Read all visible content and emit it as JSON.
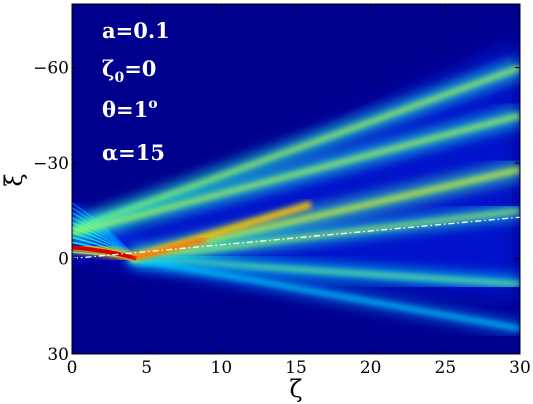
{
  "chart_data": {
    "type": "heatmap",
    "colormap": "jet",
    "xlabel": "ζ",
    "ylabel": "ξ",
    "xlim": [
      0,
      30
    ],
    "ylim": [
      30,
      -80
    ],
    "x_ticks": [
      "0",
      "5",
      "10",
      "15",
      "20",
      "25",
      "30"
    ],
    "y_ticks": [
      {
        "value": -60,
        "label": "−60"
      },
      {
        "value": -30,
        "label": "−30"
      },
      {
        "value": 0,
        "label": "0"
      },
      {
        "value": 30,
        "label": "30"
      }
    ],
    "annotations": [
      {
        "base": "a=0.1",
        "sub": "",
        "sup": ""
      },
      {
        "base": "ζ",
        "sub": "0",
        "rest": "=0",
        "sup": ""
      },
      {
        "base": "θ=1",
        "sub": "",
        "sup": "o"
      },
      {
        "base": "α=15",
        "sub": "",
        "sup": ""
      }
    ],
    "reference_line": {
      "style": "dash-dot",
      "color": "#ffffff",
      "x": [
        0,
        30
      ],
      "y": [
        0,
        -13
      ]
    },
    "beams": [
      {
        "x0": 0,
        "y0": -9,
        "x1": 30,
        "y1": -60,
        "level": 0.55,
        "width": 5
      },
      {
        "x0": 0,
        "y0": -8,
        "x1": 30,
        "y1": -45,
        "level": 0.55,
        "width": 5
      },
      {
        "x0": 4,
        "y0": 0,
        "x1": 30,
        "y1": -28,
        "level": 0.6,
        "width": 5
      },
      {
        "x0": 4,
        "y0": 0,
        "x1": 30,
        "y1": -15,
        "level": 0.55,
        "width": 4
      },
      {
        "x0": 4,
        "y0": 0,
        "x1": 30,
        "y1": 8,
        "level": 0.5,
        "width": 4
      },
      {
        "x0": 4,
        "y0": 0,
        "x1": 30,
        "y1": 22,
        "level": 0.35,
        "width": 4
      }
    ]
  }
}
